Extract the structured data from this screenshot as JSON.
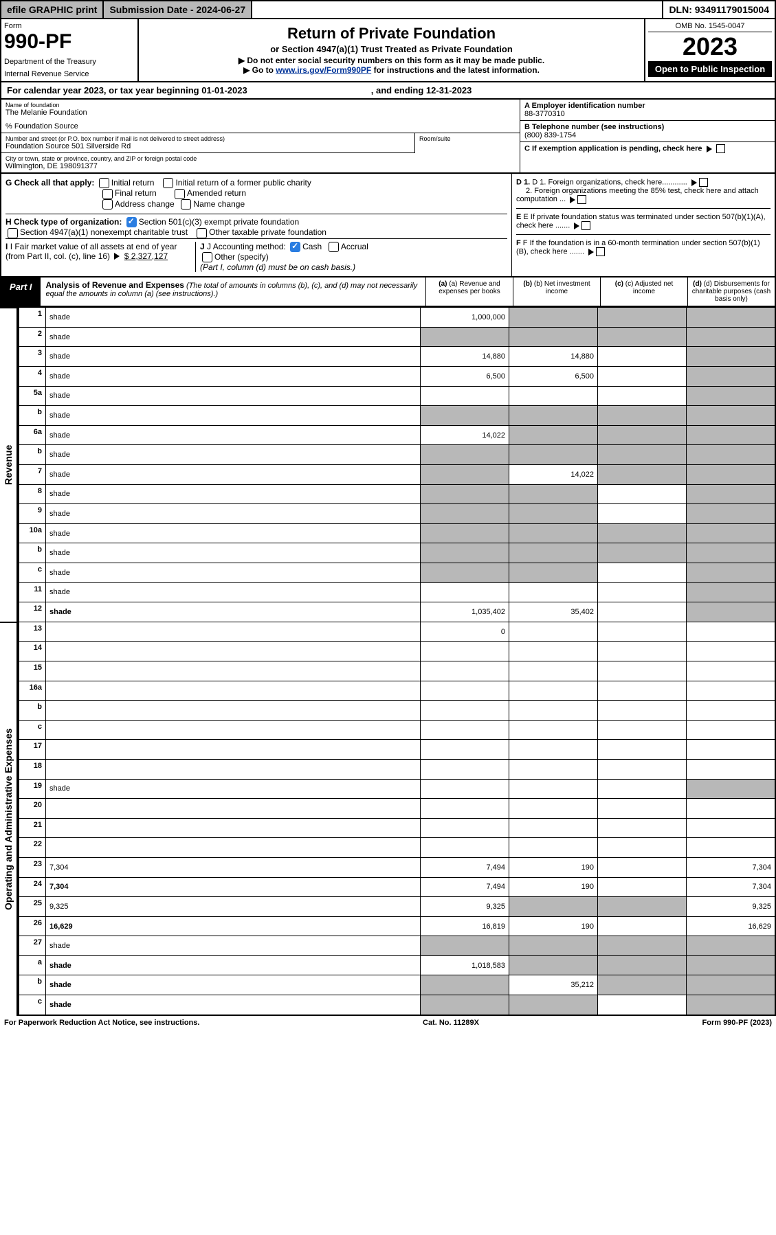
{
  "topbar": {
    "efile": "efile GRAPHIC print",
    "subdate_label": "Submission Date - 2024-06-27",
    "dln": "DLN: 93491179015004"
  },
  "header": {
    "form_label": "Form",
    "form_num": "990-PF",
    "dept": "Department of the Treasury",
    "irs": "Internal Revenue Service",
    "title": "Return of Private Foundation",
    "subtitle": "or Section 4947(a)(1) Trust Treated as Private Foundation",
    "note1": "▶ Do not enter social security numbers on this form as it may be made public.",
    "note2_pre": "▶ Go to ",
    "note2_link": "www.irs.gov/Form990PF",
    "note2_post": " for instructions and the latest information.",
    "omb": "OMB No. 1545-0047",
    "year": "2023",
    "open": "Open to Public Inspection"
  },
  "cal": {
    "text": "For calendar year 2023, or tax year beginning 01-01-2023",
    "end": ", and ending 12-31-2023"
  },
  "info": {
    "name_label": "Name of foundation",
    "name": "The Melanie Foundation",
    "pct": "% Foundation Source",
    "addr_label": "Number and street (or P.O. box number if mail is not delivered to street address)",
    "addr": "Foundation Source 501 Silverside Rd",
    "room_label": "Room/suite",
    "city_label": "City or town, state or province, country, and ZIP or foreign postal code",
    "city": "Wilmington, DE 198091377",
    "a_label": "A Employer identification number",
    "a_val": "88-3770310",
    "b_label": "B Telephone number (see instructions)",
    "b_val": "(800) 839-1754",
    "c_label": "C If exemption application is pending, check here",
    "d1": "D 1. Foreign organizations, check here............",
    "d2": "2. Foreign organizations meeting the 85% test, check here and attach computation ...",
    "e": "E If private foundation status was terminated under section 507(b)(1)(A), check here .......",
    "f": "F If the foundation is in a 60-month termination under section 507(b)(1)(B), check here .......",
    "g_label": "G Check all that apply:",
    "g_opts": [
      "Initial return",
      "Initial return of a former public charity",
      "Final return",
      "Amended return",
      "Address change",
      "Name change"
    ],
    "h_label": "H Check type of organization:",
    "h1": "Section 501(c)(3) exempt private foundation",
    "h2": "Section 4947(a)(1) nonexempt charitable trust",
    "h3": "Other taxable private foundation",
    "i_label": "I Fair market value of all assets at end of year (from Part II, col. (c), line 16)",
    "i_val": "$  2,327,127",
    "j_label": "J Accounting method:",
    "j_cash": "Cash",
    "j_accrual": "Accrual",
    "j_other": "Other (specify)",
    "j_note": "(Part I, column (d) must be on cash basis.)"
  },
  "part1": {
    "tag": "Part I",
    "title": "Analysis of Revenue and Expenses",
    "note": " (The total of amounts in columns (b), (c), and (d) may not necessarily equal the amounts in column (a) (see instructions).)",
    "col_a": "(a) Revenue and expenses per books",
    "col_b": "(b) Net investment income",
    "col_c": "(c) Adjusted net income",
    "col_d": "(d) Disbursements for charitable purposes (cash basis only)"
  },
  "side": {
    "revenue": "Revenue",
    "expenses": "Operating and Administrative Expenses"
  },
  "rows": [
    {
      "n": "1",
      "d": "shade",
      "a": "1,000,000",
      "b": "shade",
      "c": "shade"
    },
    {
      "n": "2",
      "d": "shade",
      "a": "shade",
      "b": "shade",
      "c": "shade"
    },
    {
      "n": "3",
      "d": "shade",
      "a": "14,880",
      "b": "14,880",
      "c": ""
    },
    {
      "n": "4",
      "d": "shade",
      "a": "6,500",
      "b": "6,500",
      "c": ""
    },
    {
      "n": "5a",
      "d": "shade",
      "a": "",
      "b": "",
      "c": ""
    },
    {
      "n": "b",
      "d": "shade",
      "a": "shade",
      "b": "shade",
      "c": "shade"
    },
    {
      "n": "6a",
      "d": "shade",
      "a": "14,022",
      "b": "shade",
      "c": "shade"
    },
    {
      "n": "b",
      "d": "shade",
      "a": "shade",
      "b": "shade",
      "c": "shade"
    },
    {
      "n": "7",
      "d": "shade",
      "a": "shade",
      "b": "14,022",
      "c": "shade"
    },
    {
      "n": "8",
      "d": "shade",
      "a": "shade",
      "b": "shade",
      "c": ""
    },
    {
      "n": "9",
      "d": "shade",
      "a": "shade",
      "b": "shade",
      "c": ""
    },
    {
      "n": "10a",
      "d": "shade",
      "a": "shade",
      "b": "shade",
      "c": "shade"
    },
    {
      "n": "b",
      "d": "shade",
      "a": "shade",
      "b": "shade",
      "c": "shade"
    },
    {
      "n": "c",
      "d": "shade",
      "a": "shade",
      "b": "shade",
      "c": ""
    },
    {
      "n": "11",
      "d": "shade",
      "a": "",
      "b": "",
      "c": ""
    },
    {
      "n": "12",
      "d": "shade",
      "bold": true,
      "a": "1,035,402",
      "b": "35,402",
      "c": ""
    },
    {
      "n": "13",
      "d": "",
      "a": "0",
      "b": "",
      "c": ""
    },
    {
      "n": "14",
      "d": "",
      "a": "",
      "b": "",
      "c": ""
    },
    {
      "n": "15",
      "d": "",
      "a": "",
      "b": "",
      "c": ""
    },
    {
      "n": "16a",
      "d": "",
      "a": "",
      "b": "",
      "c": ""
    },
    {
      "n": "b",
      "d": "",
      "a": "",
      "b": "",
      "c": ""
    },
    {
      "n": "c",
      "d": "",
      "a": "",
      "b": "",
      "c": ""
    },
    {
      "n": "17",
      "d": "",
      "a": "",
      "b": "",
      "c": ""
    },
    {
      "n": "18",
      "d": "",
      "a": "",
      "b": "",
      "c": ""
    },
    {
      "n": "19",
      "d": "shade",
      "a": "",
      "b": "",
      "c": ""
    },
    {
      "n": "20",
      "d": "",
      "a": "",
      "b": "",
      "c": ""
    },
    {
      "n": "21",
      "d": "",
      "a": "",
      "b": "",
      "c": ""
    },
    {
      "n": "22",
      "d": "",
      "a": "",
      "b": "",
      "c": ""
    },
    {
      "n": "23",
      "d": "7,304",
      "a": "7,494",
      "b": "190",
      "c": ""
    },
    {
      "n": "24",
      "d": "7,304",
      "bold": true,
      "a": "7,494",
      "b": "190",
      "c": ""
    },
    {
      "n": "25",
      "d": "9,325",
      "a": "9,325",
      "b": "shade",
      "c": "shade"
    },
    {
      "n": "26",
      "d": "16,629",
      "bold": true,
      "a": "16,819",
      "b": "190",
      "c": ""
    },
    {
      "n": "27",
      "d": "shade",
      "a": "shade",
      "b": "shade",
      "c": "shade"
    },
    {
      "n": "a",
      "d": "shade",
      "bold": true,
      "a": "1,018,583",
      "b": "shade",
      "c": "shade"
    },
    {
      "n": "b",
      "d": "shade",
      "bold": true,
      "a": "shade",
      "b": "35,212",
      "c": "shade"
    },
    {
      "n": "c",
      "d": "shade",
      "bold": true,
      "a": "shade",
      "b": "shade",
      "c": ""
    }
  ],
  "footer": {
    "left": "For Paperwork Reduction Act Notice, see instructions.",
    "mid": "Cat. No. 11289X",
    "right": "Form 990-PF (2023)"
  }
}
